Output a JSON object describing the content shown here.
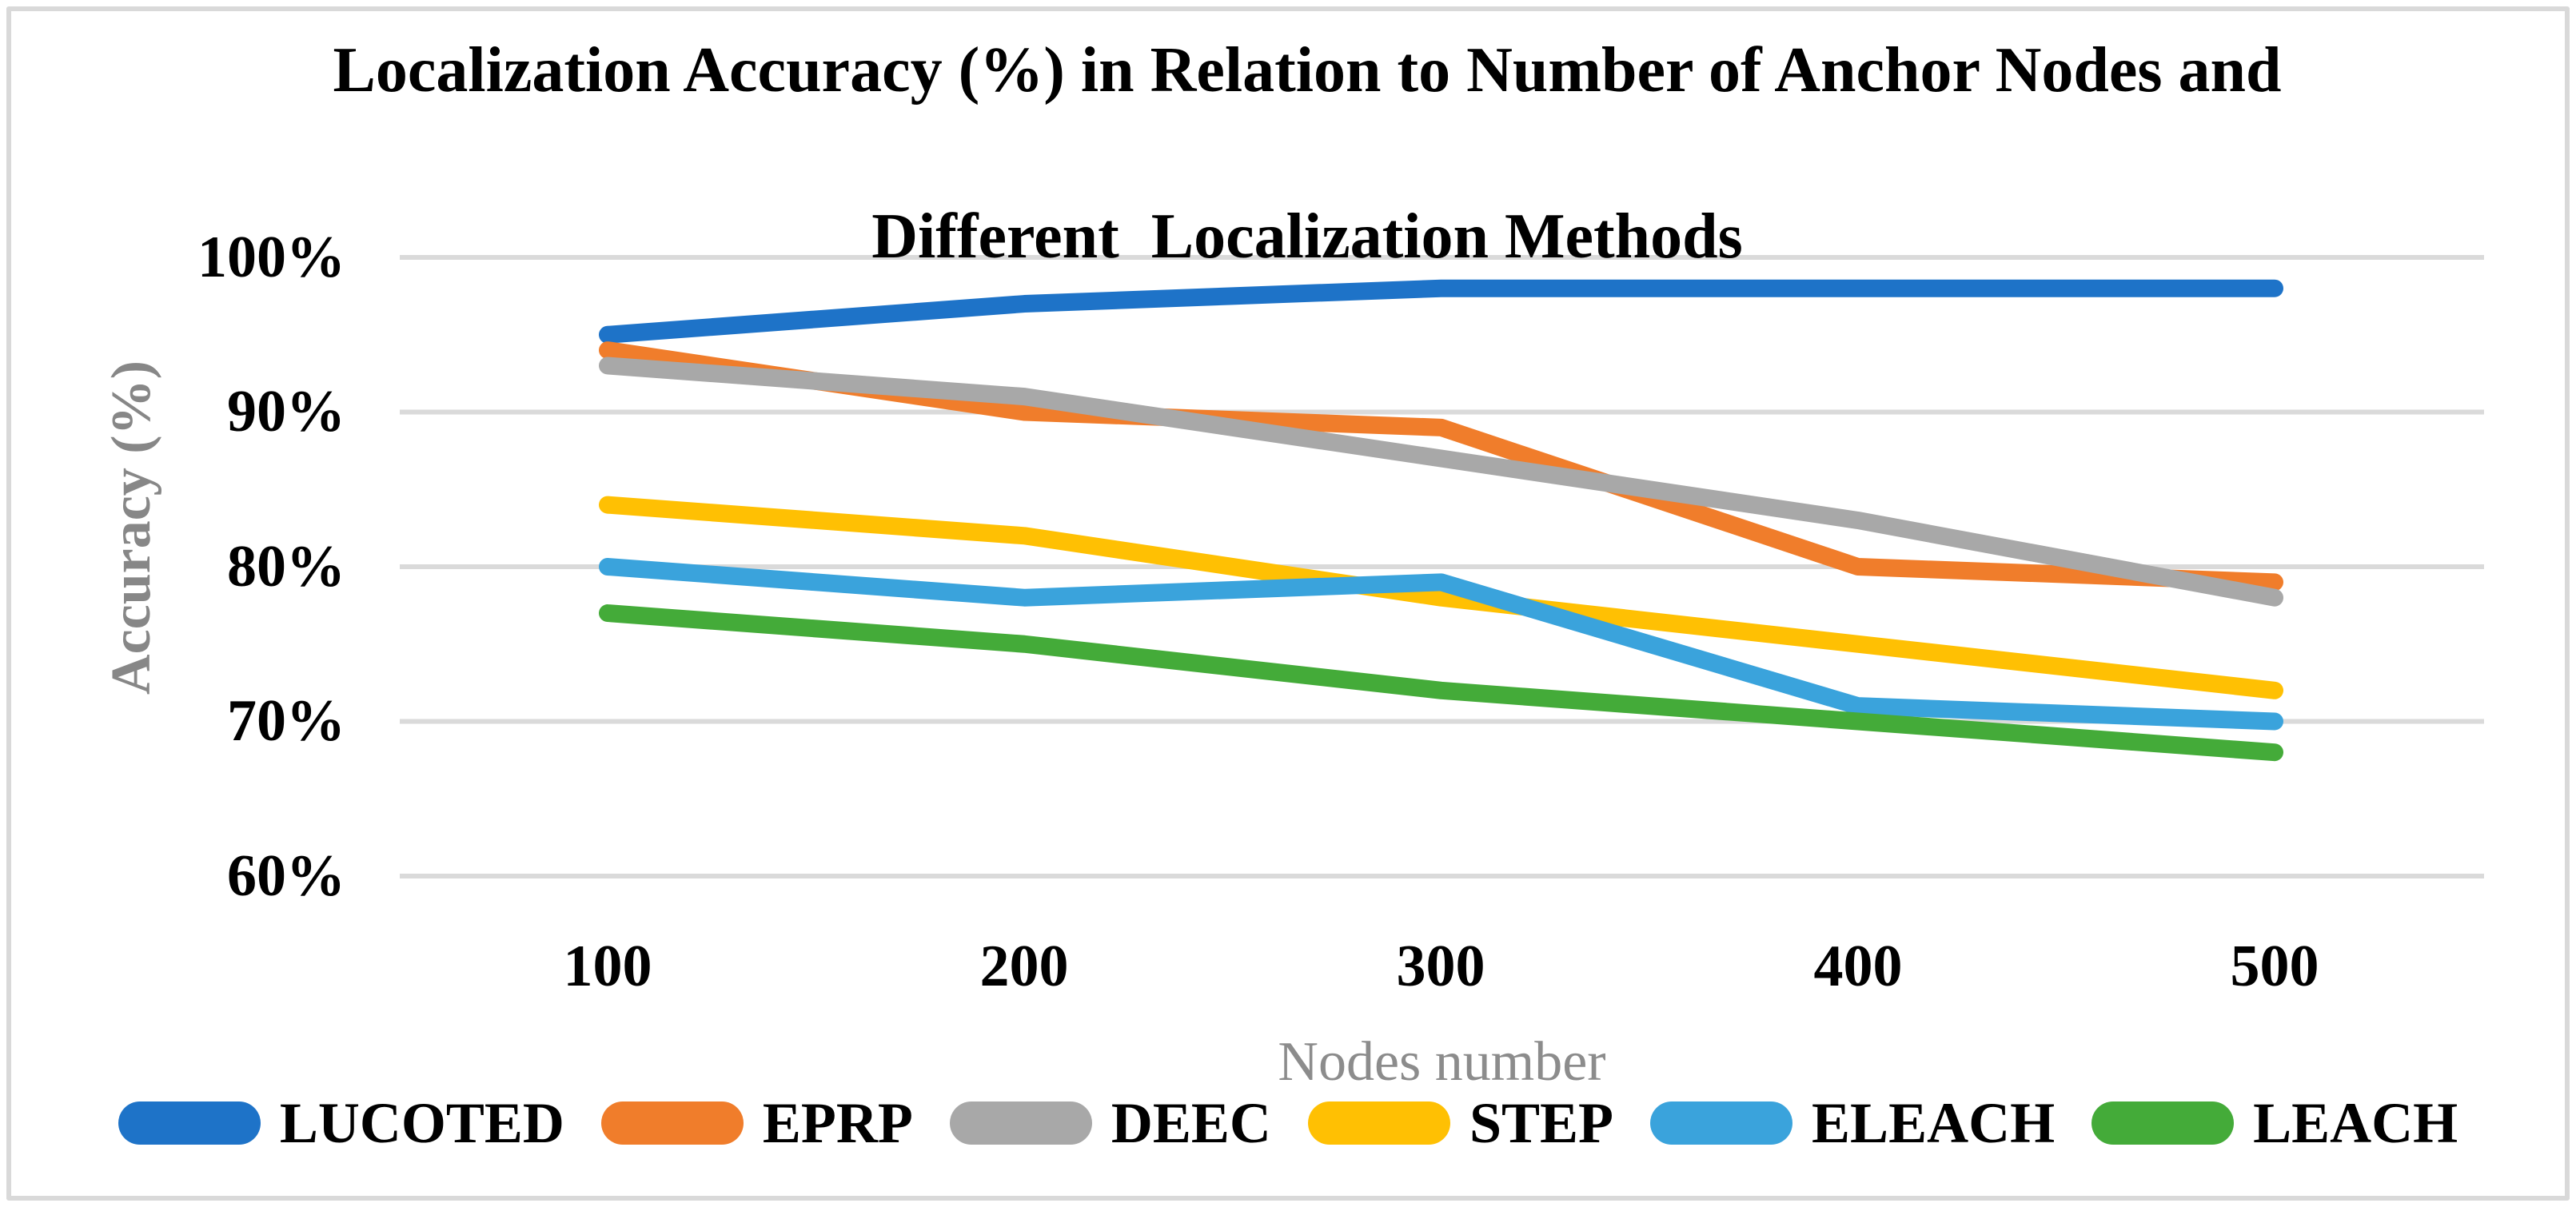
{
  "chart_data": {
    "type": "line",
    "title_lines": [
      "Localization Accuracy (%) in Relation to Number of Anchor Nodes and",
      "Different  Localization Methods"
    ],
    "xlabel": "Nodes number",
    "ylabel": "Accuracy (%)",
    "categories": [
      "100",
      "200",
      "300",
      "400",
      "500"
    ],
    "y_tick_labels": [
      "100%",
      "90%",
      "80%",
      "70%",
      "60%"
    ],
    "y_tick_values": [
      100,
      90,
      80,
      70,
      60
    ],
    "ylim": [
      60,
      100
    ],
    "x_axis_type": "category",
    "grid": "horizontal",
    "gridline_color": "#DADADA",
    "frame_border_color": "#D9D9D9",
    "axis_label_color": "#878787",
    "legend_position": "bottom",
    "series": [
      {
        "name": "LUCOTED",
        "color": "#1E73C8",
        "values": [
          95,
          97,
          98,
          98,
          98
        ]
      },
      {
        "name": "EPRP",
        "color": "#F07D2B",
        "values": [
          94,
          90,
          89,
          80,
          79
        ]
      },
      {
        "name": "DEEC",
        "color": "#A8A8A8",
        "values": [
          93,
          91,
          87,
          83,
          78
        ]
      },
      {
        "name": "STEP",
        "color": "#FFC003",
        "values": [
          84,
          82,
          78,
          75,
          72
        ]
      },
      {
        "name": "ELEACH",
        "color": "#3AA3DC",
        "values": [
          80,
          78,
          79,
          71,
          70
        ]
      },
      {
        "name": "LEACH",
        "color": "#44AB39",
        "values": [
          77,
          75,
          72,
          70,
          68
        ]
      }
    ]
  }
}
